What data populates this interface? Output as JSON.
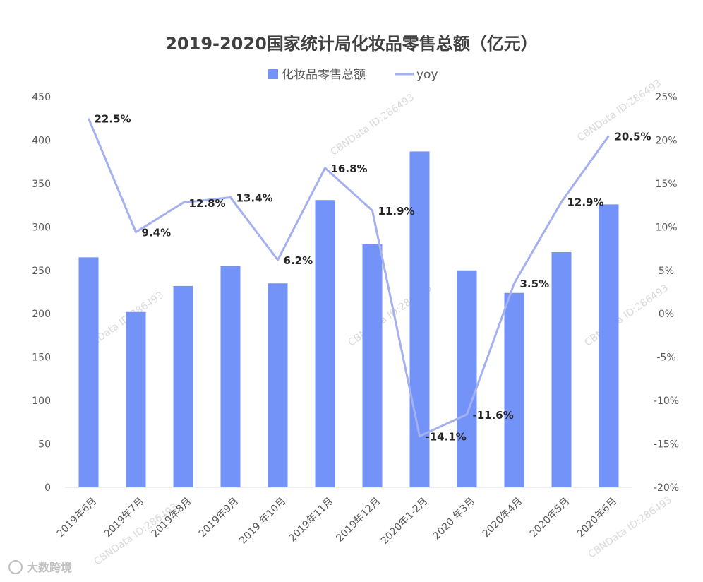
{
  "chart_data": {
    "type": "bar",
    "title": "2019-2020国家统计局化妆品零售总额（亿元）",
    "categories": [
      "2019年6月",
      "2019年7月",
      "2019年8月",
      "2019年9月",
      "2019 年10月",
      "2019年11月",
      "2019年12月",
      "2020年1-2月",
      "2020 年3月",
      "2020年4月",
      "2020年5月",
      "2020年6月"
    ],
    "series": [
      {
        "name": "化妆品零售总额",
        "type": "bar",
        "axis": "left",
        "color": "#7393f9",
        "values": [
          265,
          202,
          232,
          255,
          235,
          331,
          280,
          387,
          250,
          224,
          271,
          326
        ]
      },
      {
        "name": "yoy",
        "type": "line",
        "axis": "right",
        "color": "#a4b0ef",
        "values": [
          22.5,
          9.4,
          12.8,
          13.4,
          6.2,
          16.8,
          11.9,
          -14.1,
          -11.6,
          3.5,
          12.9,
          20.5
        ],
        "labels": [
          "22.5%",
          "9.4%",
          "12.8%",
          "13.4%",
          "6.2%",
          "16.8%",
          "11.9%",
          "-14.1%",
          "-11.6%",
          "3.5%",
          "12.9%",
          "20.5%"
        ]
      }
    ],
    "y_left": {
      "min": 0,
      "max": 450,
      "ticks": [
        0,
        50,
        100,
        150,
        200,
        250,
        300,
        350,
        400,
        450
      ]
    },
    "y_right": {
      "min": -20,
      "max": 25,
      "ticks": [
        "-20%",
        "-15%",
        "-10%",
        "-5%",
        "0%",
        "5%",
        "10%",
        "15%",
        "20%",
        "25%"
      ]
    },
    "grid": false,
    "legend_position": "top-center"
  },
  "watermark": "CBNData ID:286493",
  "logo": {
    "text": "大数跨境"
  }
}
